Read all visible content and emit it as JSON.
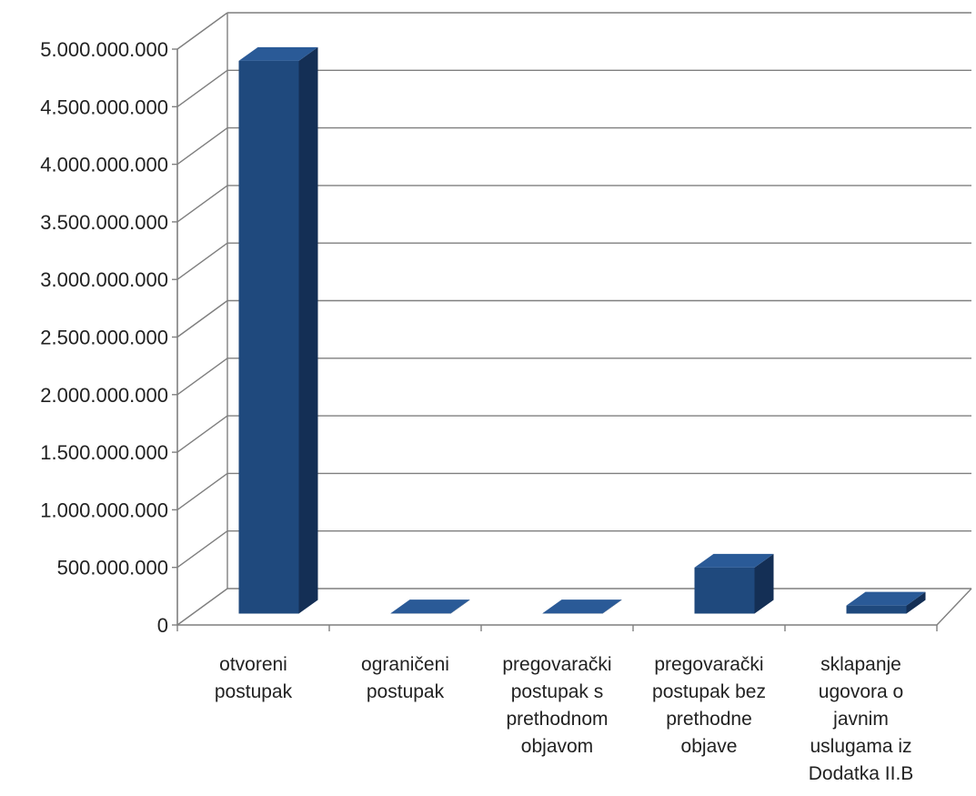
{
  "chart_data": {
    "type": "bar",
    "title": "",
    "xlabel": "",
    "ylabel": "",
    "ylim": [
      0,
      5000000000
    ],
    "y_ticks": [
      0,
      500000000,
      1000000000,
      1500000000,
      2000000000,
      2500000000,
      3000000000,
      3500000000,
      4000000000,
      4500000000,
      5000000000
    ],
    "y_tick_labels": [
      "0",
      "500.000.000",
      "1.000.000.000",
      "1.500.000.000",
      "2.000.000.000",
      "2.500.000.000",
      "3.000.000.000",
      "3.500.000.000",
      "4.000.000.000",
      "4.500.000.000",
      "5.000.000.000"
    ],
    "categories": [
      [
        "otvoreni",
        "postupak"
      ],
      [
        "ograničeni",
        "postupak"
      ],
      [
        "pregovarački",
        "postupak s",
        "prethodnom",
        "objavom"
      ],
      [
        "pregovarački",
        "postupak bez",
        "prethodne",
        "objave"
      ],
      [
        "sklapanje",
        "ugovora o",
        "javnim",
        "uslugama iz",
        "Dodatka II.B"
      ]
    ],
    "values": [
      4800000000,
      3000000,
      3000000,
      400000000,
      70000000
    ],
    "grid": true,
    "legend": "none",
    "three_d": true,
    "colors": {
      "bar_front": "#1f497d",
      "bar_side": "#142f55",
      "bar_top": "#2a5a97",
      "gridline": "#7f7f7f",
      "text": "#222222"
    }
  }
}
